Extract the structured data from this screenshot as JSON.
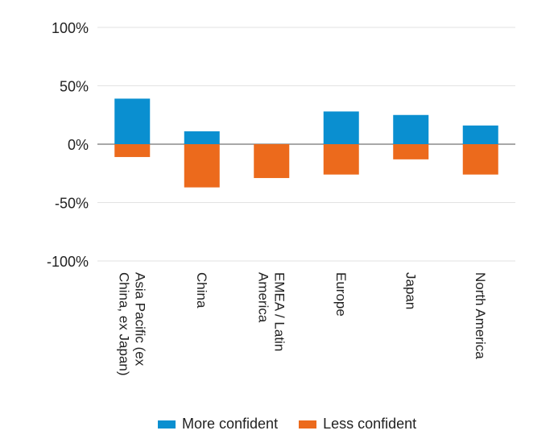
{
  "chart_data": {
    "type": "bar",
    "stacked": "diverging",
    "categories": [
      [
        "Asia Pacific (ex",
        "China, ex Japan)"
      ],
      [
        "China"
      ],
      [
        "EMEA / Latin",
        "America"
      ],
      [
        "Europe"
      ],
      [
        "Japan"
      ],
      [
        "North America"
      ]
    ],
    "series": [
      {
        "name": "More confident",
        "color": "#0a8fd0",
        "values": [
          39,
          11,
          0,
          28,
          25,
          16
        ]
      },
      {
        "name": "Less confident",
        "color": "#ec6a1c",
        "values": [
          -11,
          -37,
          -29,
          -26,
          -13,
          -26
        ]
      }
    ],
    "ylim": [
      -100,
      100
    ],
    "yticks": [
      100,
      50,
      0,
      -50,
      -100
    ],
    "ytick_labels": [
      "100%",
      "50%",
      "0%",
      "-50%",
      "-100%"
    ],
    "grid": true,
    "legend_position": "bottom"
  }
}
